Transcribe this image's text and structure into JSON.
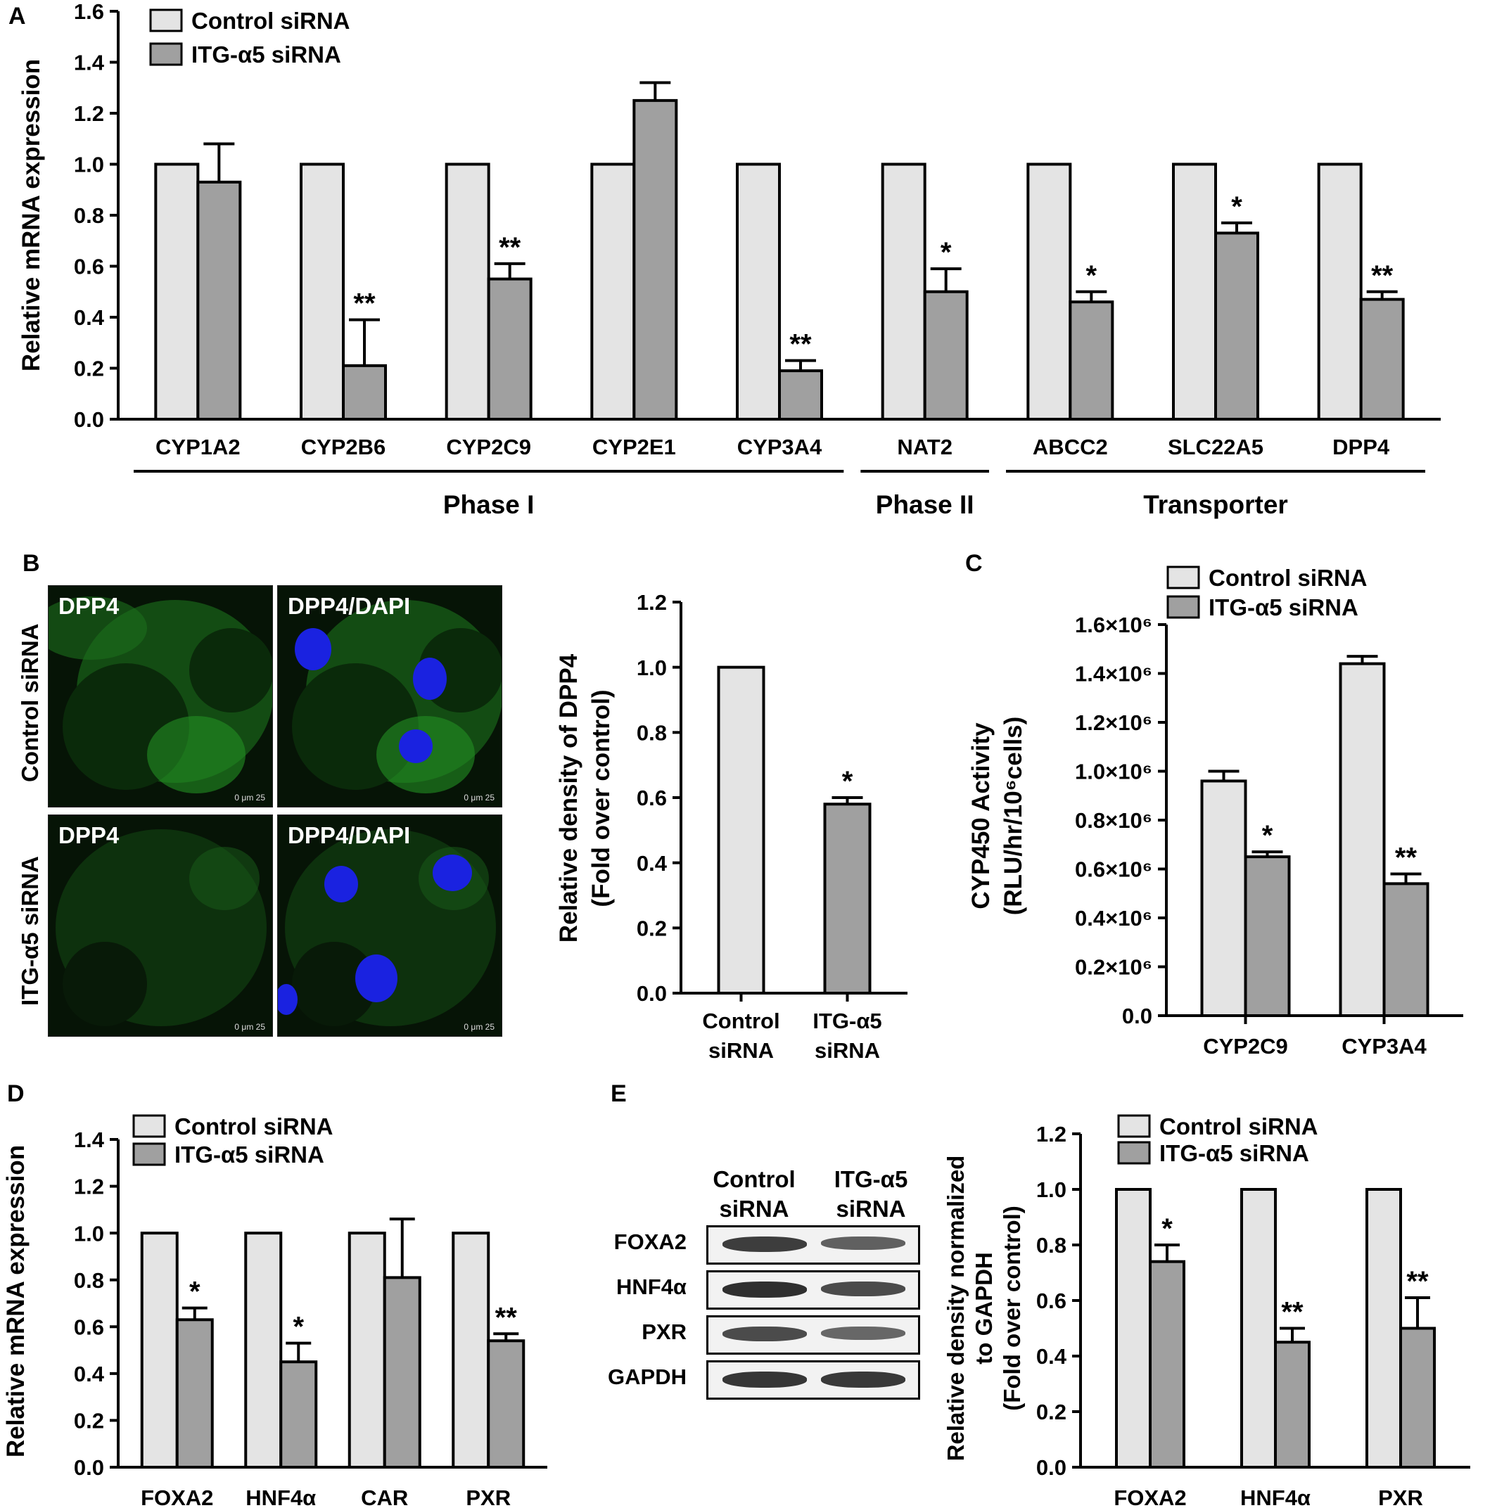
{
  "panels": {
    "a": "A",
    "b": "B",
    "c": "C",
    "d": "D",
    "e": "E"
  },
  "colors": {
    "control": "#e4e4e4",
    "treated": "#a0a0a0",
    "dapi": "#1a22e0",
    "dpp4": "#2bd12b"
  },
  "micrograph": {
    "row_control": "Control siRNA",
    "row_itg": "ITG-α5 siRNA",
    "label_dpp4": "DPP4",
    "label_dpp4_dapi": "DPP4/DAPI",
    "scale": "0   μm   25"
  },
  "blot": {
    "lane_control": [
      "Control",
      "siRNA"
    ],
    "lane_itg": [
      "ITG-α5",
      "siRNA"
    ],
    "proteins": [
      "FOXA2",
      "HNF4α",
      "PXR",
      "GAPDH"
    ],
    "intensity_control": [
      0.85,
      0.95,
      0.75,
      0.9
    ],
    "intensity_itg": [
      0.6,
      0.75,
      0.55,
      0.88
    ]
  },
  "chart_data": [
    {
      "id": "A",
      "type": "bar",
      "ylabel": "Relative mRNA expression",
      "ylim": [
        0,
        1.6
      ],
      "yticks": [
        "0.0",
        "0.2",
        "0.4",
        "0.6",
        "0.8",
        "1.0",
        "1.2",
        "1.4",
        "1.6"
      ],
      "categories": [
        "CYP1A2",
        "CYP2B6",
        "CYP2C9",
        "CYP2E1",
        "CYP3A4",
        "NAT2",
        "ABCC2",
        "SLC22A5",
        "DPP4"
      ],
      "groups": [
        {
          "label": "Phase I",
          "from": 0,
          "to": 4
        },
        {
          "label": "Phase II",
          "from": 5,
          "to": 5
        },
        {
          "label": "Transporter",
          "from": 6,
          "to": 8
        }
      ],
      "legend": [
        "Control siRNA",
        "ITG-α5  siRNA"
      ],
      "series": [
        {
          "name": "Control siRNA",
          "values": [
            1.0,
            1.0,
            1.0,
            1.0,
            1.0,
            1.0,
            1.0,
            1.0,
            1.0
          ],
          "errors": [
            0,
            0,
            0,
            0,
            0,
            0,
            0,
            0,
            0
          ]
        },
        {
          "name": "ITG-α5  siRNA",
          "values": [
            0.93,
            0.21,
            0.55,
            1.25,
            0.19,
            0.5,
            0.46,
            0.73,
            0.47
          ],
          "errors": [
            0.15,
            0.18,
            0.06,
            0.07,
            0.04,
            0.09,
            0.04,
            0.04,
            0.03
          ]
        }
      ],
      "significance": [
        "",
        "**",
        "**",
        "",
        "**",
        "*",
        "*",
        "*",
        "**"
      ]
    },
    {
      "id": "B",
      "type": "bar",
      "ylabel": [
        "Relative density of DPP4",
        "(Fold over control)"
      ],
      "ylim": [
        0,
        1.2
      ],
      "yticks": [
        "0.0",
        "0.2",
        "0.4",
        "0.6",
        "0.8",
        "1.0",
        "1.2"
      ],
      "categories": [
        [
          "Control",
          "siRNA"
        ],
        [
          "ITG-α5",
          "siRNA"
        ]
      ],
      "values": [
        1.0,
        0.58
      ],
      "errors": [
        0,
        0.02
      ],
      "significance": [
        "",
        "*"
      ]
    },
    {
      "id": "C",
      "type": "bar",
      "ylabel": [
        "CYP450 Activity",
        "(RLU/hr/10⁶cells)"
      ],
      "ylim": [
        0,
        1600000
      ],
      "yticks": [
        "0.0",
        "0.2×10⁶",
        "0.4×10⁶",
        "0.6×10⁶",
        "0.8×10⁶",
        "1.0×10⁶",
        "1.2×10⁶",
        "1.4×10⁶",
        "1.6×10⁶"
      ],
      "categories": [
        "CYP2C9",
        "CYP3A4"
      ],
      "legend": [
        "Control siRNA",
        "ITG-α5  siRNA"
      ],
      "series": [
        {
          "name": "Control siRNA",
          "values": [
            960000,
            1440000
          ],
          "errors": [
            40000,
            30000
          ]
        },
        {
          "name": "ITG-α5  siRNA",
          "values": [
            650000,
            540000
          ],
          "errors": [
            20000,
            40000
          ]
        }
      ],
      "significance": [
        "*",
        "**"
      ]
    },
    {
      "id": "D",
      "type": "bar",
      "ylabel": "Relative mRNA expression",
      "ylim": [
        0,
        1.4
      ],
      "yticks": [
        "0.0",
        "0.2",
        "0.4",
        "0.6",
        "0.8",
        "1.0",
        "1.2",
        "1.4"
      ],
      "categories": [
        "FOXA2",
        "HNF4α",
        "CAR",
        "PXR"
      ],
      "legend": [
        "Control siRNA",
        "ITG-α5  siRNA"
      ],
      "series": [
        {
          "name": "Control siRNA",
          "values": [
            1.0,
            1.0,
            1.0,
            1.0
          ],
          "errors": [
            0,
            0,
            0,
            0
          ]
        },
        {
          "name": "ITG-α5  siRNA",
          "values": [
            0.63,
            0.45,
            0.81,
            0.54
          ],
          "errors": [
            0.05,
            0.08,
            0.25,
            0.03
          ]
        }
      ],
      "significance": [
        "*",
        "*",
        "",
        "**"
      ]
    },
    {
      "id": "E",
      "type": "bar",
      "ylabel": [
        "Relative density normalized",
        "to GAPDH",
        "(Fold over control)"
      ],
      "ylim": [
        0,
        1.2
      ],
      "yticks": [
        "0.0",
        "0.2",
        "0.4",
        "0.6",
        "0.8",
        "1.0",
        "1.2"
      ],
      "categories": [
        "FOXA2",
        "HNF4α",
        "PXR"
      ],
      "legend": [
        "Control siRNA",
        "ITG-α5  siRNA"
      ],
      "series": [
        {
          "name": "Control siRNA",
          "values": [
            1.0,
            1.0,
            1.0
          ],
          "errors": [
            0,
            0,
            0
          ]
        },
        {
          "name": "ITG-α5  siRNA",
          "values": [
            0.74,
            0.45,
            0.5
          ],
          "errors": [
            0.06,
            0.05,
            0.11
          ]
        }
      ],
      "significance": [
        "*",
        "**",
        "**"
      ]
    }
  ]
}
